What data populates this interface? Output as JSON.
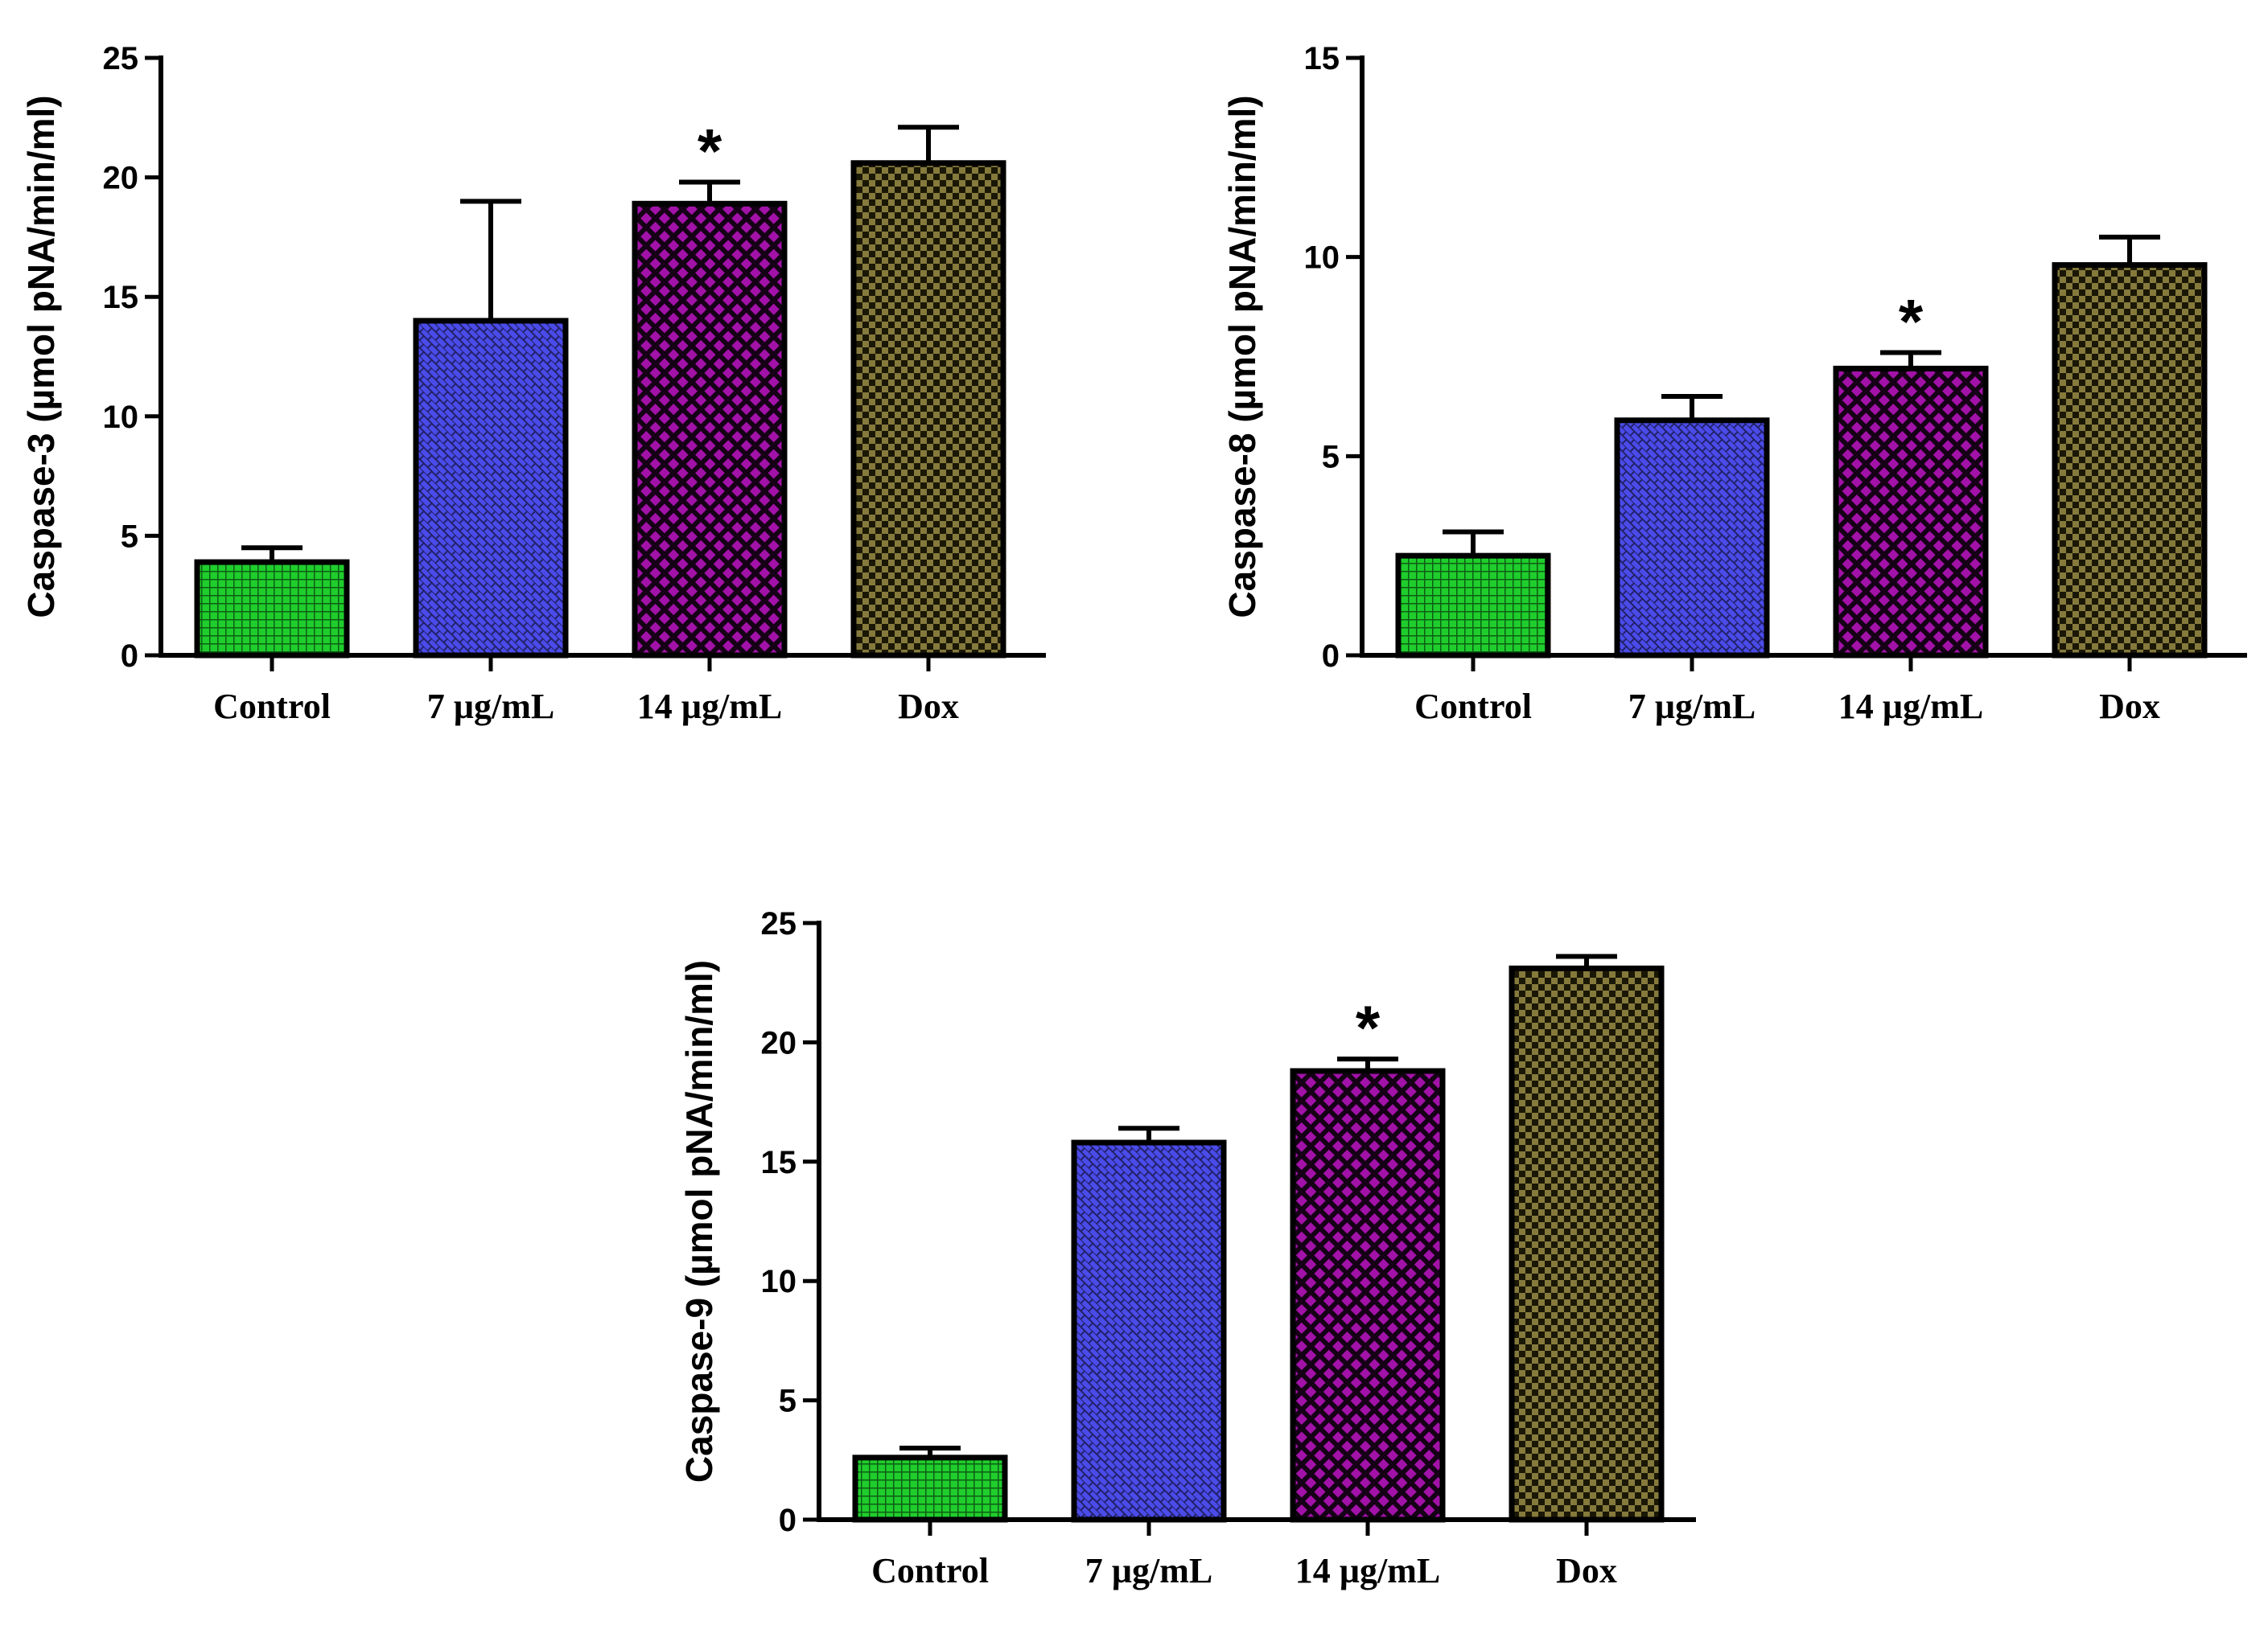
{
  "chart_data": [
    {
      "type": "bar",
      "ylabel": "Caspase-3 (µmol pNA/min/ml)",
      "xlabel": "",
      "ylim": [
        0,
        25
      ],
      "yticks": [
        "0",
        "5",
        "10",
        "15",
        "20",
        "25"
      ],
      "categories": [
        "Control",
        "7 µg/mL",
        "14 µg/mL",
        "Dox"
      ],
      "values": [
        3.9,
        14.0,
        18.9,
        20.6
      ],
      "errors": [
        0.6,
        5.0,
        0.9,
        1.5
      ],
      "annotations": [
        "",
        "",
        "*",
        ""
      ],
      "colors": [
        "#1fce2d",
        "#4b4bea",
        "#a212a8",
        "#857a3c"
      ],
      "patterns": [
        "grid",
        "brick",
        "diamond",
        "checker"
      ]
    },
    {
      "type": "bar",
      "ylabel": "Caspase-8 (µmol pNA/min/ml)",
      "xlabel": "",
      "ylim": [
        0,
        15
      ],
      "yticks": [
        "0",
        "5",
        "10",
        "15"
      ],
      "categories": [
        "Control",
        "7 µg/mL",
        "14 µg/mL",
        "Dox"
      ],
      "values": [
        2.5,
        5.9,
        7.2,
        9.8
      ],
      "errors": [
        0.6,
        0.6,
        0.4,
        0.7
      ],
      "annotations": [
        "",
        "",
        "*",
        ""
      ],
      "colors": [
        "#1fce2d",
        "#4b4bea",
        "#a212a8",
        "#857a3c"
      ],
      "patterns": [
        "grid",
        "brick",
        "diamond",
        "checker"
      ]
    },
    {
      "type": "bar",
      "ylabel": "Caspase-9 (µmol pNA/min/ml)",
      "xlabel": "",
      "ylim": [
        0,
        25
      ],
      "yticks": [
        "0",
        "5",
        "10",
        "15",
        "20",
        "25"
      ],
      "categories": [
        "Control",
        "7 µg/mL",
        "14 µg/mL",
        "Dox"
      ],
      "values": [
        2.6,
        15.8,
        18.8,
        23.1
      ],
      "errors": [
        0.4,
        0.6,
        0.5,
        0.5
      ],
      "annotations": [
        "",
        "",
        "*",
        ""
      ],
      "colors": [
        "#1fce2d",
        "#4b4bea",
        "#a212a8",
        "#857a3c"
      ],
      "patterns": [
        "grid",
        "brick",
        "diamond",
        "checker"
      ]
    }
  ]
}
